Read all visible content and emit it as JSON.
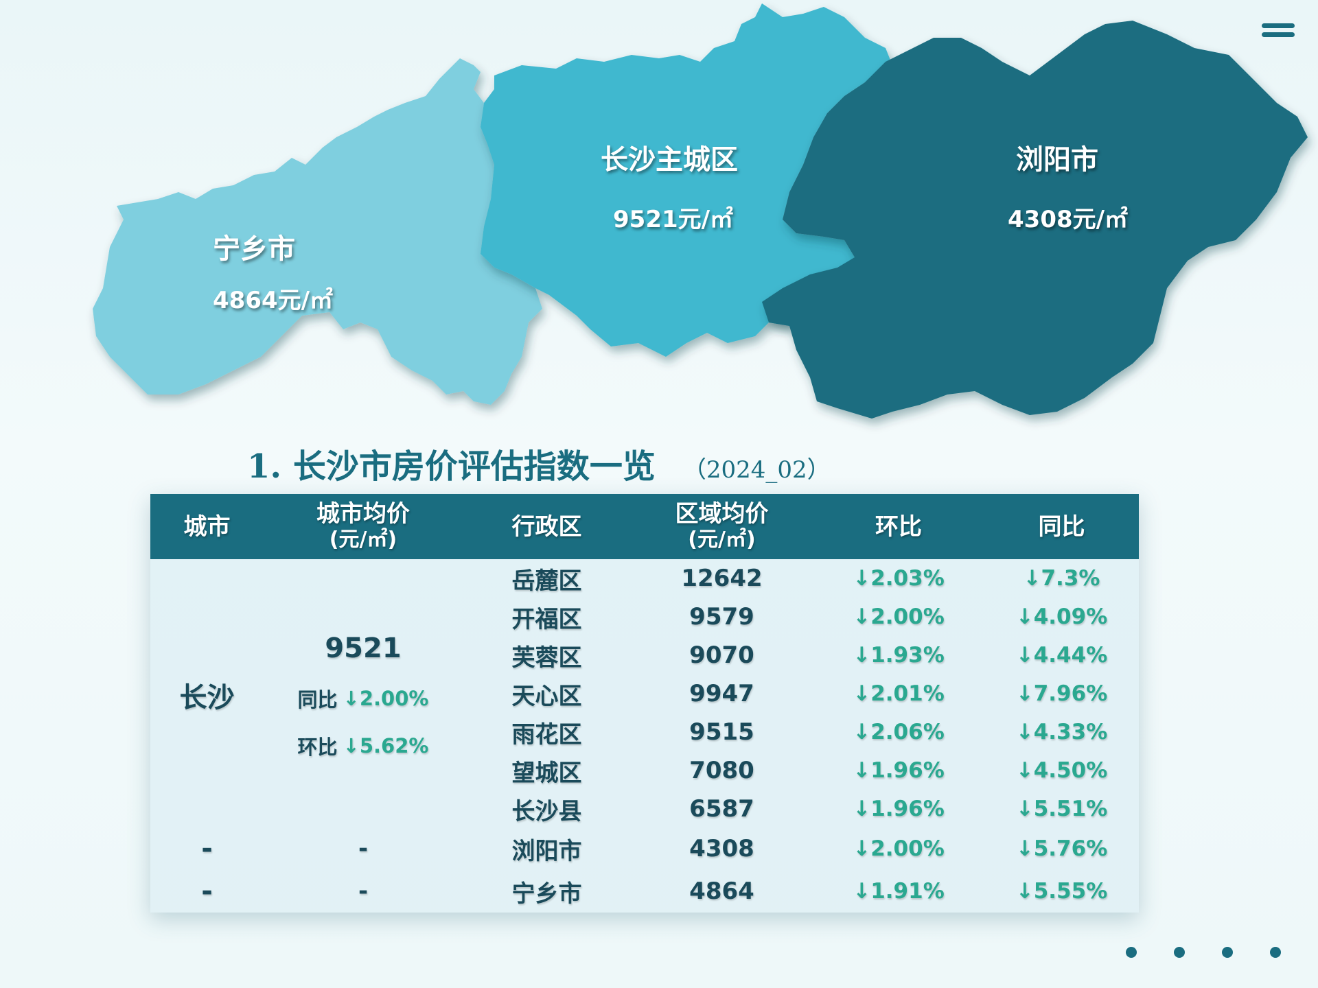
{
  "map": {
    "regions": [
      {
        "id": "ningxiang",
        "name": "宁乡市",
        "price": "4864元/㎡",
        "color": "#7fcfdf"
      },
      {
        "id": "changsha_main",
        "name": "长沙主城区",
        "price": "9521元/㎡",
        "color": "#3fb8cf"
      },
      {
        "id": "liuyang",
        "name": "浏阳市",
        "price": "4308元/㎡",
        "color": "#1a6d80"
      }
    ]
  },
  "title": {
    "main": "1. 长沙市房价评估指数一览",
    "period": "（2024_02）"
  },
  "table": {
    "headers": [
      {
        "label": "城市",
        "unit": ""
      },
      {
        "label": "城市均价",
        "unit": "(元/㎡)"
      },
      {
        "label": "行政区",
        "unit": ""
      },
      {
        "label": "区域均价",
        "unit": "(元/㎡)"
      },
      {
        "label": "环比",
        "unit": ""
      },
      {
        "label": "同比",
        "unit": ""
      }
    ],
    "changsha": {
      "city": "长沙",
      "avg": "9521",
      "yoy_label": "同比",
      "yoy": "↓2.00%",
      "mom_label": "环比",
      "mom": "↓5.62%"
    },
    "rows": [
      {
        "district": "岳麓区",
        "price": "12642",
        "mom": "↓2.03%",
        "yoy": "↓7.3%"
      },
      {
        "district": "开福区",
        "price": "9579",
        "mom": "↓2.00%",
        "yoy": "↓4.09%"
      },
      {
        "district": "芙蓉区",
        "price": "9070",
        "mom": "↓1.93%",
        "yoy": "↓4.44%"
      },
      {
        "district": "天心区",
        "price": "9947",
        "mom": "↓2.01%",
        "yoy": "↓7.96%"
      },
      {
        "district": "雨花区",
        "price": "9515",
        "mom": "↓2.06%",
        "yoy": "↓4.33%"
      },
      {
        "district": "望城区",
        "price": "7080",
        "mom": "↓1.96%",
        "yoy": "↓4.50%"
      },
      {
        "district": "长沙县",
        "price": "6587",
        "mom": "↓1.96%",
        "yoy": "↓5.51%"
      },
      {
        "city": "-",
        "avg": "-",
        "district": "浏阳市",
        "price": "4308",
        "mom": "↓2.00%",
        "yoy": "↓5.76%"
      },
      {
        "city": "-",
        "avg": "-",
        "district": "宁乡市",
        "price": "4864",
        "mom": "↓1.91%",
        "yoy": "↓5.55%"
      }
    ]
  },
  "ui": {
    "menu_icon": "hamburger-menu-icon",
    "page_dots": 4
  }
}
